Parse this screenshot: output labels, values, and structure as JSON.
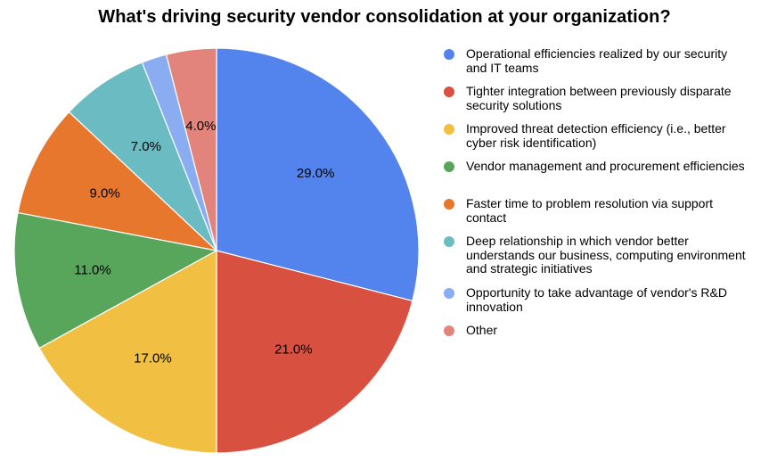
{
  "chart_data": {
    "type": "pie",
    "title": "What's driving security vendor consolidation at your organization?",
    "legend_position": "right",
    "slices": [
      {
        "label": "Operational efficiencies realized by our security and IT teams",
        "value": 29.0,
        "display": "29.0%",
        "color": "#5383EC"
      },
      {
        "label": "Tighter integration between previously disparate security solutions",
        "value": 21.0,
        "display": "21.0%",
        "color": "#D85140"
      },
      {
        "label": "Improved threat detection efficiency (i.e., better cyber risk identification)",
        "value": 17.0,
        "display": "17.0%",
        "color": "#F1BF42"
      },
      {
        "label": "Vendor management and procurement efficiencies",
        "value": 11.0,
        "display": "11.0%",
        "color": "#58A65C"
      },
      {
        "label": "Faster time to problem resolution via support contact",
        "value": 9.0,
        "display": "9.0%",
        "color": "#E8772E"
      },
      {
        "label": "Deep relationship in which vendor better understands our business, computing environment and strategic initiatives",
        "value": 7.0,
        "display": "7.0%",
        "color": "#6BBCC2"
      },
      {
        "label": "Opportunity to take advantage of vendor's R&D innovation",
        "value": 2.0,
        "display": "",
        "color": "#8AACF0"
      },
      {
        "label": "Other",
        "value": 4.0,
        "display": "4.0%",
        "color": "#E3847C"
      }
    ]
  }
}
